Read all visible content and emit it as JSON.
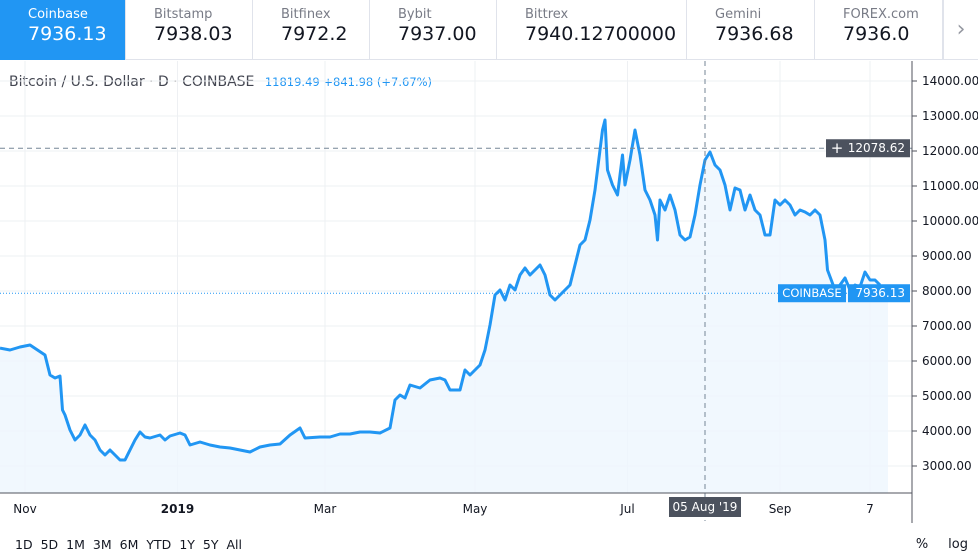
{
  "tabs": [
    {
      "name": "Coinbase",
      "value": "7936.13",
      "active": true
    },
    {
      "name": "Bitstamp",
      "value": "7938.03"
    },
    {
      "name": "Bitfinex",
      "value": "7972.2"
    },
    {
      "name": "Bybit",
      "value": "7937.00"
    },
    {
      "name": "Bittrex",
      "value": "7940.12700000"
    },
    {
      "name": "Gemini",
      "value": "7936.68"
    },
    {
      "name": "FOREX.com",
      "value": "7936.0"
    }
  ],
  "legend": {
    "title": "Bitcoin / U.S. Dollar",
    "sep": "·",
    "interval": "D",
    "exchange": "COINBASE",
    "quote": "11819.49 +841.98 (+7.67%)"
  },
  "crosshair": {
    "price": "12078.62",
    "date": "05 Aug '19"
  },
  "last_price": {
    "label": "COINBASE",
    "value": "7936.13"
  },
  "ranges": [
    "1D",
    "5D",
    "1M",
    "3M",
    "6M",
    "YTD",
    "1Y",
    "5Y",
    "All"
  ],
  "scale_options": [
    "%",
    "log"
  ],
  "colors": {
    "accent": "#2196f3",
    "line": "#2196f3",
    "fill": "#eef6fe"
  },
  "chart_data": {
    "type": "area",
    "title": "Bitcoin / U.S. Dollar · D · COINBASE",
    "x_unit": "days from start (start ≈ 25 Oct 2018)",
    "ylim": [
      2000,
      14500
    ],
    "y_ticks": [
      "3000.00",
      "4000.00",
      "5000.00",
      "6000.00",
      "7000.00",
      "8000.00",
      "9000.00",
      "10000.00",
      "11000.00",
      "12000.00",
      "13000.00",
      "14000.00"
    ],
    "y_tick_values": [
      3000,
      4000,
      5000,
      6000,
      7000,
      8000,
      9000,
      10000,
      11000,
      12000,
      13000,
      14000
    ],
    "x_ticks": [
      {
        "label": "Nov",
        "day": 6
      },
      {
        "label": "2019",
        "day": 67
      },
      {
        "label": "Mar",
        "day": 126
      },
      {
        "label": "May",
        "day": 186
      },
      {
        "label": "Jul",
        "day": 247
      },
      {
        "label": "Sep",
        "day": 308
      },
      {
        "label": "7",
        "day": 344
      }
    ],
    "points": [
      [
        0,
        6370
      ],
      [
        4,
        6314
      ],
      [
        8,
        6400
      ],
      [
        12,
        6457
      ],
      [
        15,
        6314
      ],
      [
        18,
        6171
      ],
      [
        20,
        5600
      ],
      [
        22,
        5514
      ],
      [
        24,
        5571
      ],
      [
        25,
        4600
      ],
      [
        26,
        4457
      ],
      [
        28,
        4029
      ],
      [
        30,
        3743
      ],
      [
        32,
        3886
      ],
      [
        34,
        4171
      ],
      [
        36,
        3886
      ],
      [
        38,
        3743
      ],
      [
        40,
        3457
      ],
      [
        42,
        3314
      ],
      [
        44,
        3457
      ],
      [
        46,
        3314
      ],
      [
        48,
        3171
      ],
      [
        50,
        3171
      ],
      [
        52,
        3457
      ],
      [
        54,
        3743
      ],
      [
        56,
        3971
      ],
      [
        58,
        3829
      ],
      [
        60,
        3800
      ],
      [
        64,
        3886
      ],
      [
        66,
        3743
      ],
      [
        68,
        3857
      ],
      [
        72,
        3943
      ],
      [
        74,
        3886
      ],
      [
        76,
        3600
      ],
      [
        80,
        3686
      ],
      [
        84,
        3600
      ],
      [
        88,
        3543
      ],
      [
        92,
        3514
      ],
      [
        96,
        3457
      ],
      [
        100,
        3400
      ],
      [
        104,
        3543
      ],
      [
        108,
        3600
      ],
      [
        112,
        3629
      ],
      [
        116,
        3886
      ],
      [
        120,
        4086
      ],
      [
        122,
        3800
      ],
      [
        128,
        3829
      ],
      [
        132,
        3829
      ],
      [
        136,
        3914
      ],
      [
        140,
        3914
      ],
      [
        144,
        3971
      ],
      [
        148,
        3971
      ],
      [
        152,
        3943
      ],
      [
        156,
        4086
      ],
      [
        158,
        4886
      ],
      [
        160,
        5029
      ],
      [
        162,
        4943
      ],
      [
        164,
        5314
      ],
      [
        168,
        5229
      ],
      [
        172,
        5457
      ],
      [
        176,
        5514
      ],
      [
        178,
        5457
      ],
      [
        180,
        5171
      ],
      [
        184,
        5171
      ],
      [
        186,
        5743
      ],
      [
        188,
        5600
      ],
      [
        190,
        5743
      ],
      [
        192,
        5886
      ],
      [
        194,
        6314
      ],
      [
        196,
        7029
      ],
      [
        198,
        7886
      ],
      [
        200,
        8029
      ],
      [
        202,
        7743
      ],
      [
        204,
        8171
      ],
      [
        206,
        8029
      ],
      [
        208,
        8457
      ],
      [
        210,
        8657
      ],
      [
        212,
        8457
      ],
      [
        214,
        8600
      ],
      [
        216,
        8743
      ],
      [
        218,
        8457
      ],
      [
        220,
        7886
      ],
      [
        222,
        7743
      ],
      [
        224,
        7886
      ],
      [
        226,
        8029
      ],
      [
        228,
        8171
      ],
      [
        230,
        8743
      ],
      [
        232,
        9314
      ],
      [
        234,
        9457
      ],
      [
        236,
        10029
      ],
      [
        238,
        10886
      ],
      [
        240,
        12029
      ],
      [
        241,
        12600
      ],
      [
        242,
        12886
      ],
      [
        243,
        11457
      ],
      [
        245,
        11029
      ],
      [
        247,
        10743
      ],
      [
        249,
        11886
      ],
      [
        250,
        11029
      ],
      [
        252,
        11743
      ],
      [
        254,
        12600
      ],
      [
        256,
        11886
      ],
      [
        258,
        10886
      ],
      [
        260,
        10600
      ],
      [
        262,
        10171
      ],
      [
        263,
        9457
      ],
      [
        264,
        10600
      ],
      [
        266,
        10314
      ],
      [
        268,
        10743
      ],
      [
        270,
        10314
      ],
      [
        272,
        9600
      ],
      [
        274,
        9457
      ],
      [
        276,
        9543
      ],
      [
        278,
        10171
      ],
      [
        280,
        11029
      ],
      [
        282,
        11743
      ],
      [
        284,
        11971
      ],
      [
        286,
        11600
      ],
      [
        288,
        11457
      ],
      [
        290,
        11029
      ],
      [
        292,
        10314
      ],
      [
        294,
        10943
      ],
      [
        296,
        10886
      ],
      [
        298,
        10314
      ],
      [
        300,
        10743
      ],
      [
        302,
        10314
      ],
      [
        304,
        10171
      ],
      [
        306,
        9600
      ],
      [
        308,
        9600
      ],
      [
        310,
        10600
      ],
      [
        312,
        10457
      ],
      [
        314,
        10600
      ],
      [
        316,
        10457
      ],
      [
        318,
        10171
      ],
      [
        320,
        10314
      ],
      [
        322,
        10257
      ],
      [
        324,
        10171
      ],
      [
        326,
        10314
      ],
      [
        328,
        10171
      ],
      [
        330,
        9457
      ],
      [
        331,
        8600
      ],
      [
        334,
        8029
      ],
      [
        336,
        8171
      ],
      [
        338,
        8371
      ],
      [
        340,
        8029
      ],
      [
        342,
        8171
      ],
      [
        344,
        8114
      ],
      [
        346,
        8543
      ],
      [
        348,
        8314
      ],
      [
        350,
        8314
      ],
      [
        352,
        8171
      ]
    ],
    "crosshair_day": 282,
    "crosshair_price": 12078.62,
    "last_value": 7936.13
  }
}
